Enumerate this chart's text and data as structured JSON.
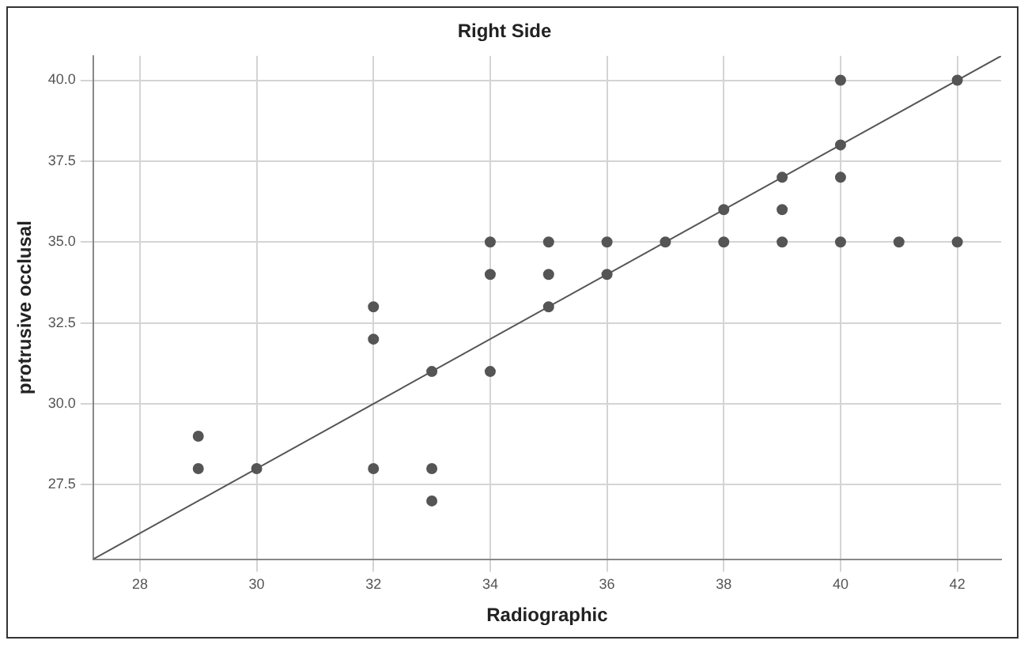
{
  "chart_data": {
    "type": "scatter",
    "title": "Right Side",
    "xlabel": "Radiographic",
    "ylabel": "protrusive occlusal",
    "xlim": [
      27.2,
      42.75
    ],
    "xticks": [
      28,
      30,
      32,
      34,
      36,
      38,
      40,
      42
    ],
    "ylim": [
      25.2,
      40.75
    ],
    "yticks": [
      {
        "value": 27.5,
        "label": "27.5"
      },
      {
        "value": 30,
        "label": "30.0"
      },
      {
        "value": 32.5,
        "label": "32.5"
      },
      {
        "value": 35,
        "label": "35.0"
      },
      {
        "value": 37.5,
        "label": "37.5"
      },
      {
        "value": 40,
        "label": "40.0"
      }
    ],
    "grid": true,
    "legend": false,
    "series": [
      {
        "marker": "circle",
        "color": "#555555",
        "x": [
          29,
          29,
          30,
          32,
          32,
          32,
          33,
          33,
          33,
          34,
          34,
          34,
          35,
          35,
          35,
          36,
          36,
          37,
          38,
          38,
          39,
          39,
          39,
          40,
          40,
          40,
          40,
          41,
          42,
          42
        ],
        "values": [
          29,
          28,
          28,
          33,
          32,
          28,
          31,
          28,
          27,
          35,
          34,
          31,
          35,
          34,
          33,
          35,
          34,
          35,
          36,
          35,
          37,
          36,
          35,
          40,
          38,
          37,
          35,
          35,
          40,
          35
        ]
      },
      {
        "type": "line",
        "marker": "none",
        "color": "#555555",
        "x": [
          27.2,
          42.75
        ],
        "values": [
          25.2,
          40.75
        ]
      }
    ]
  }
}
